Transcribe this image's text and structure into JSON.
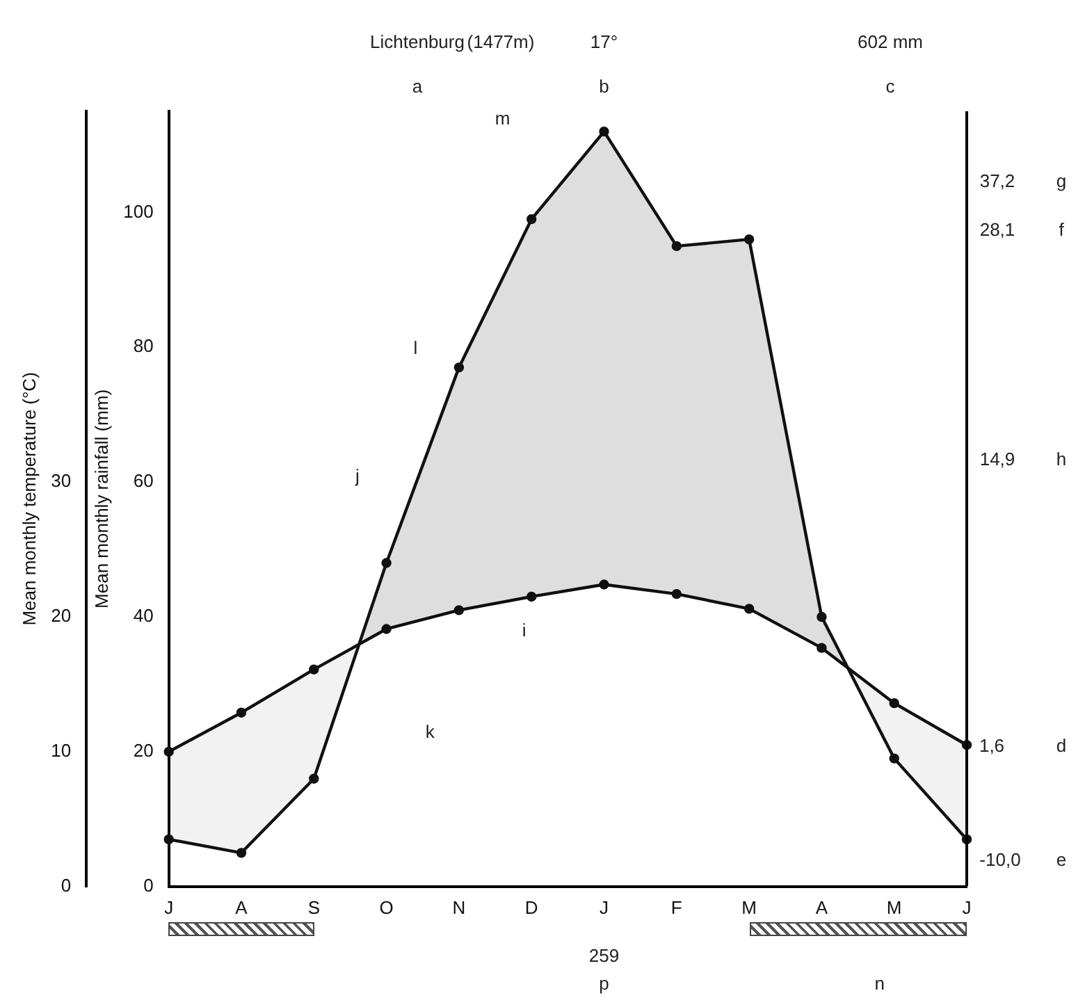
{
  "chart_data": {
    "type": "line",
    "categories": [
      "J",
      "A",
      "S",
      "O",
      "N",
      "D",
      "J",
      "F",
      "M",
      "A",
      "M",
      "J"
    ],
    "ylabel": "Mean monthly rainfall (mm)",
    "y2label": "Mean monthly temperature (°C)",
    "ylim": [
      0,
      115
    ],
    "yticks": [
      0,
      20,
      40,
      60,
      80,
      100
    ],
    "y2lim": [
      0,
      57.5
    ],
    "y2ticks": [
      0,
      10,
      20,
      30
    ],
    "series": [
      {
        "color": "#111111",
        "values": [
          7,
          5,
          16,
          48,
          77,
          99,
          112,
          95,
          96,
          40,
          19,
          7
        ]
      },
      {
        "color": "#111111",
        "axis": "y2",
        "values": [
          10.0,
          12.9,
          16.1,
          19.1,
          20.5,
          21.5,
          22.4,
          21.7,
          20.6,
          17.7,
          13.6,
          10.5
        ]
      }
    ],
    "marker": "circle",
    "line_style": "solid",
    "grid": false,
    "legend": false,
    "annotations": [
      "Lichtenburg",
      "(1477m)",
      "a",
      "17°",
      "b",
      "602 mm",
      "c",
      "37,2",
      "g",
      "28,1",
      "f",
      "14,9",
      "h",
      "1,6",
      "d",
      "-10,0",
      "e",
      "259",
      "p",
      "n",
      "m",
      "l",
      "j",
      "i",
      "k"
    ]
  }
}
